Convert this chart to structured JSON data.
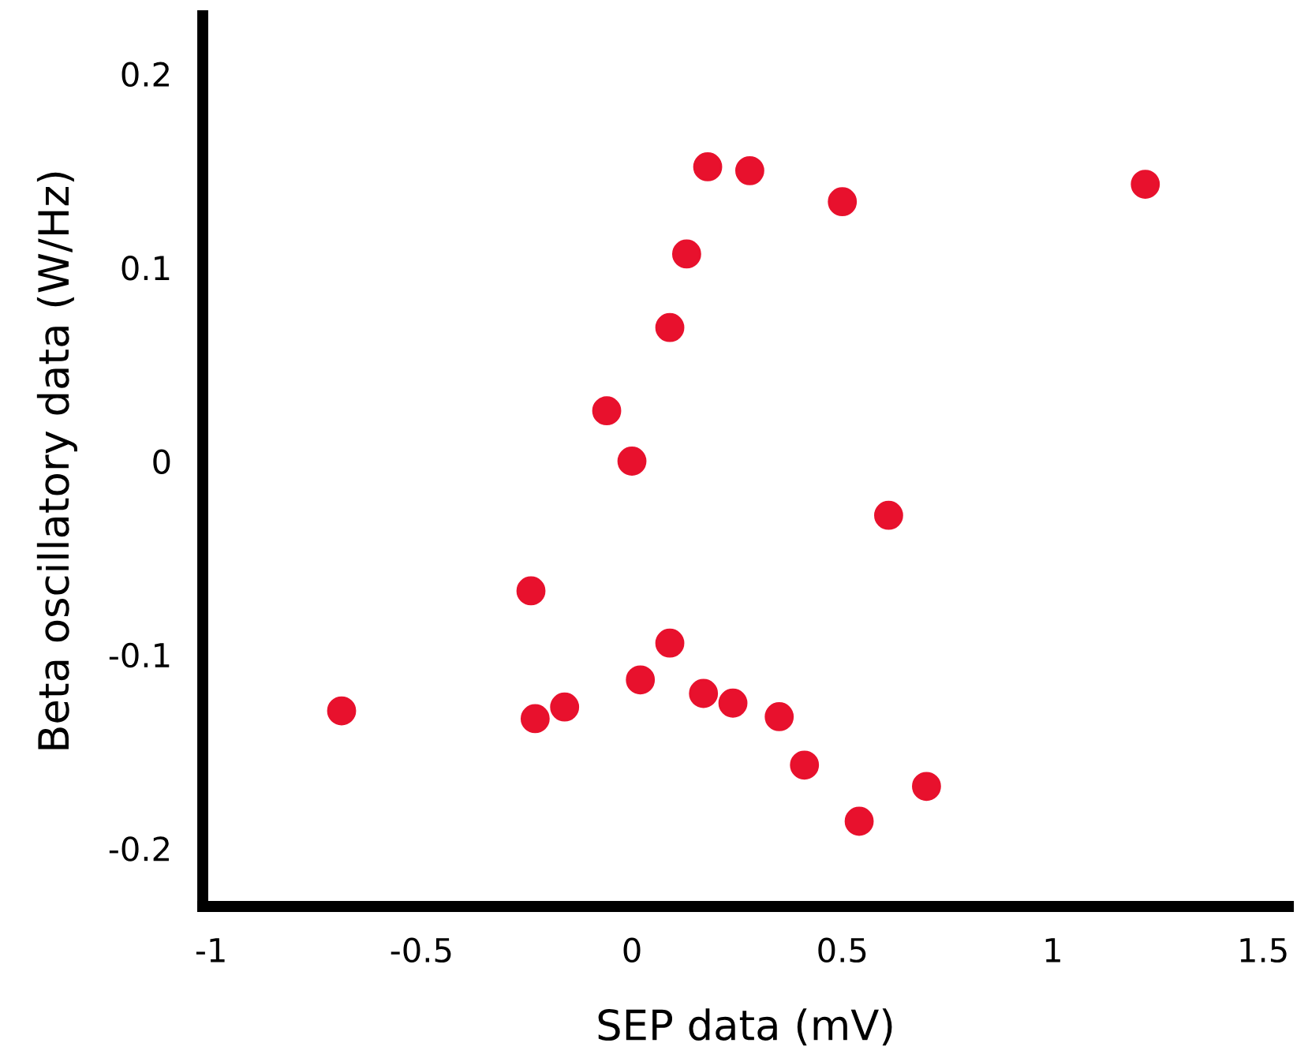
{
  "chart_data": {
    "type": "scatter",
    "xlabel": "SEP data (mV)",
    "ylabel": "Beta oscillatory data (W/Hz)",
    "xlim": [
      -1.02,
      1.56
    ],
    "ylim": [
      -0.23,
      0.23
    ],
    "xticks": [
      -1,
      -0.5,
      0,
      0.5,
      1,
      1.5
    ],
    "yticks": [
      -0.2,
      -0.1,
      0,
      0.1,
      0.2
    ],
    "grid": false,
    "legend": false,
    "marker": "circle",
    "series": [
      {
        "color": "#e8112d",
        "x": [
          -0.69,
          -0.24,
          -0.23,
          -0.16,
          -0.06,
          0.0,
          0.02,
          0.09,
          0.09,
          0.13,
          0.17,
          0.18,
          0.24,
          0.28,
          0.35,
          0.41,
          0.5,
          0.54,
          0.61,
          0.7,
          1.22
        ],
        "values": [
          -0.129,
          -0.067,
          -0.133,
          -0.127,
          0.026,
          0.0,
          -0.113,
          0.069,
          -0.094,
          0.107,
          -0.12,
          0.152,
          -0.125,
          0.15,
          -0.132,
          -0.157,
          0.134,
          -0.186,
          -0.028,
          -0.168,
          0.143
        ]
      }
    ]
  }
}
